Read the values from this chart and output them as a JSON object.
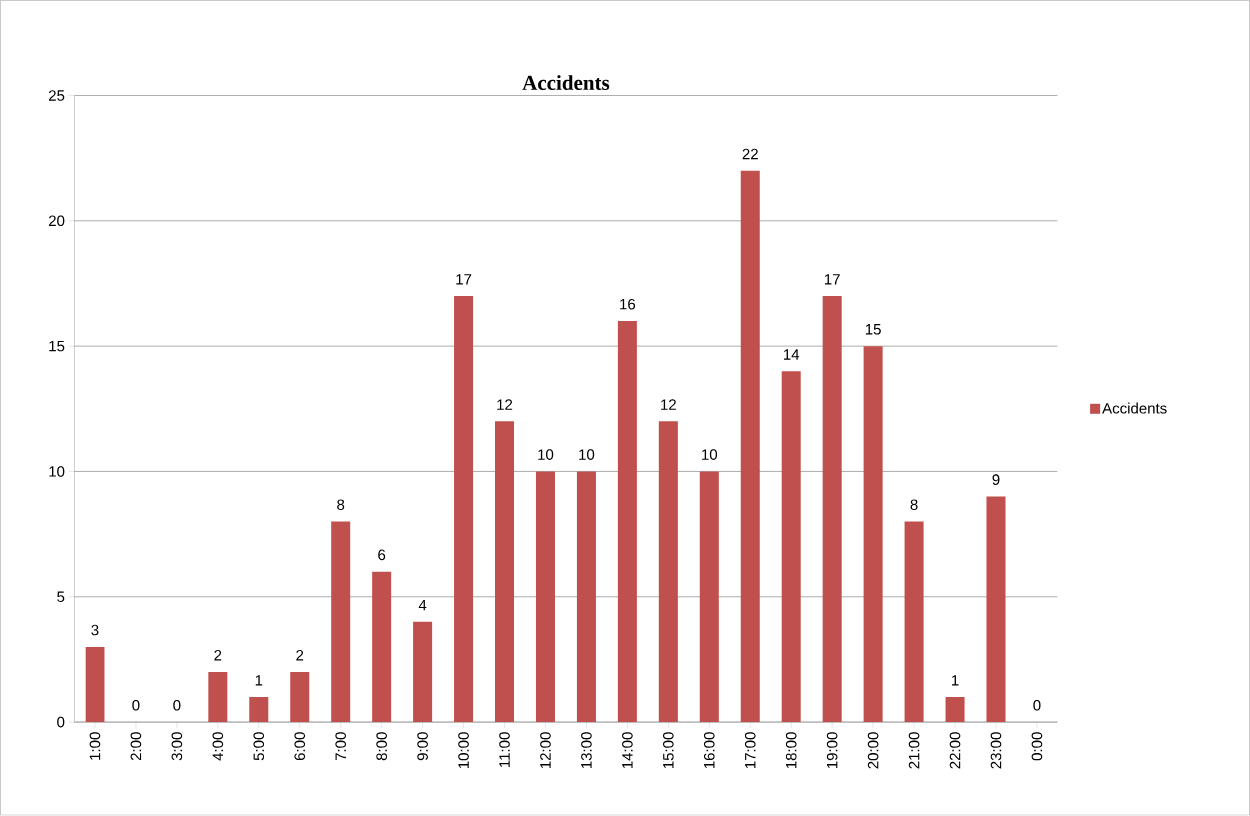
{
  "chart_data": {
    "type": "bar",
    "title": "Accidents",
    "categories": [
      "1:00",
      "2:00",
      "3:00",
      "4:00",
      "5:00",
      "6:00",
      "7:00",
      "8:00",
      "9:00",
      "10:00",
      "11:00",
      "12:00",
      "13:00",
      "14:00",
      "15:00",
      "16:00",
      "17:00",
      "18:00",
      "19:00",
      "20:00",
      "21:00",
      "22:00",
      "23:00",
      "0:00"
    ],
    "series": [
      {
        "name": "Accidents",
        "color": "#c0504d",
        "values": [
          3,
          0,
          0,
          2,
          1,
          2,
          8,
          6,
          4,
          17,
          12,
          10,
          10,
          16,
          12,
          10,
          22,
          14,
          17,
          15,
          8,
          1,
          9,
          0
        ]
      }
    ],
    "ylim": [
      0,
      25
    ],
    "yticks": [
      0,
      5,
      10,
      15,
      20,
      25
    ],
    "grid": "y",
    "legend": "right",
    "data_labels": true
  }
}
